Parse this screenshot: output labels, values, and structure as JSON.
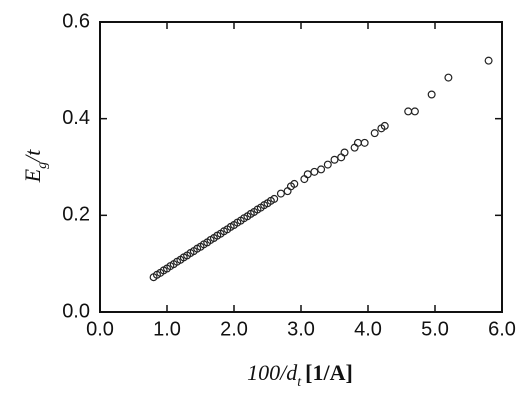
{
  "chart_data": {
    "type": "scatter",
    "xlabel": {
      "main": "100/d",
      "sub": "t",
      "rest": "[1/A]"
    },
    "ylabel": {
      "main": "E",
      "sub": "g",
      "rest": "/t"
    },
    "x": [
      0.8,
      0.85,
      0.9,
      0.95,
      1.0,
      1.05,
      1.1,
      1.15,
      1.2,
      1.25,
      1.3,
      1.35,
      1.4,
      1.45,
      1.5,
      1.55,
      1.6,
      1.65,
      1.7,
      1.75,
      1.8,
      1.85,
      1.9,
      1.95,
      2.0,
      2.05,
      2.1,
      2.15,
      2.2,
      2.25,
      2.3,
      2.35,
      2.4,
      2.45,
      2.5,
      2.55,
      2.6,
      2.7,
      2.8,
      2.85,
      2.9,
      3.05,
      3.1,
      3.2,
      3.3,
      3.4,
      3.5,
      3.6,
      3.65,
      3.8,
      3.85,
      3.95,
      4.1,
      4.2,
      4.25,
      4.6,
      4.7,
      4.95,
      5.2,
      5.8
    ],
    "values": [
      0.072,
      0.077,
      0.081,
      0.086,
      0.09,
      0.095,
      0.099,
      0.104,
      0.108,
      0.113,
      0.117,
      0.122,
      0.126,
      0.131,
      0.135,
      0.14,
      0.144,
      0.149,
      0.153,
      0.158,
      0.162,
      0.167,
      0.171,
      0.176,
      0.18,
      0.185,
      0.189,
      0.194,
      0.198,
      0.203,
      0.207,
      0.212,
      0.216,
      0.221,
      0.225,
      0.23,
      0.234,
      0.245,
      0.25,
      0.26,
      0.265,
      0.275,
      0.285,
      0.29,
      0.295,
      0.305,
      0.315,
      0.32,
      0.33,
      0.34,
      0.35,
      0.35,
      0.37,
      0.38,
      0.385,
      0.415,
      0.415,
      0.45,
      0.485,
      0.52
    ],
    "color": "#222222",
    "xlim": [
      0,
      6
    ],
    "ylim": [
      0,
      0.6
    ],
    "xticks": [
      {
        "value": 0,
        "label": "0.0"
      },
      {
        "value": 1,
        "label": "1.0"
      },
      {
        "value": 2,
        "label": "2.0"
      },
      {
        "value": 3,
        "label": "3.0"
      },
      {
        "value": 4,
        "label": "4.0"
      },
      {
        "value": 5,
        "label": "5.0"
      },
      {
        "value": 6,
        "label": "6.0"
      }
    ],
    "yticks": [
      {
        "value": 0,
        "label": "0.0"
      },
      0.2,
      0.4,
      0.6
    ],
    "grid": false
  }
}
